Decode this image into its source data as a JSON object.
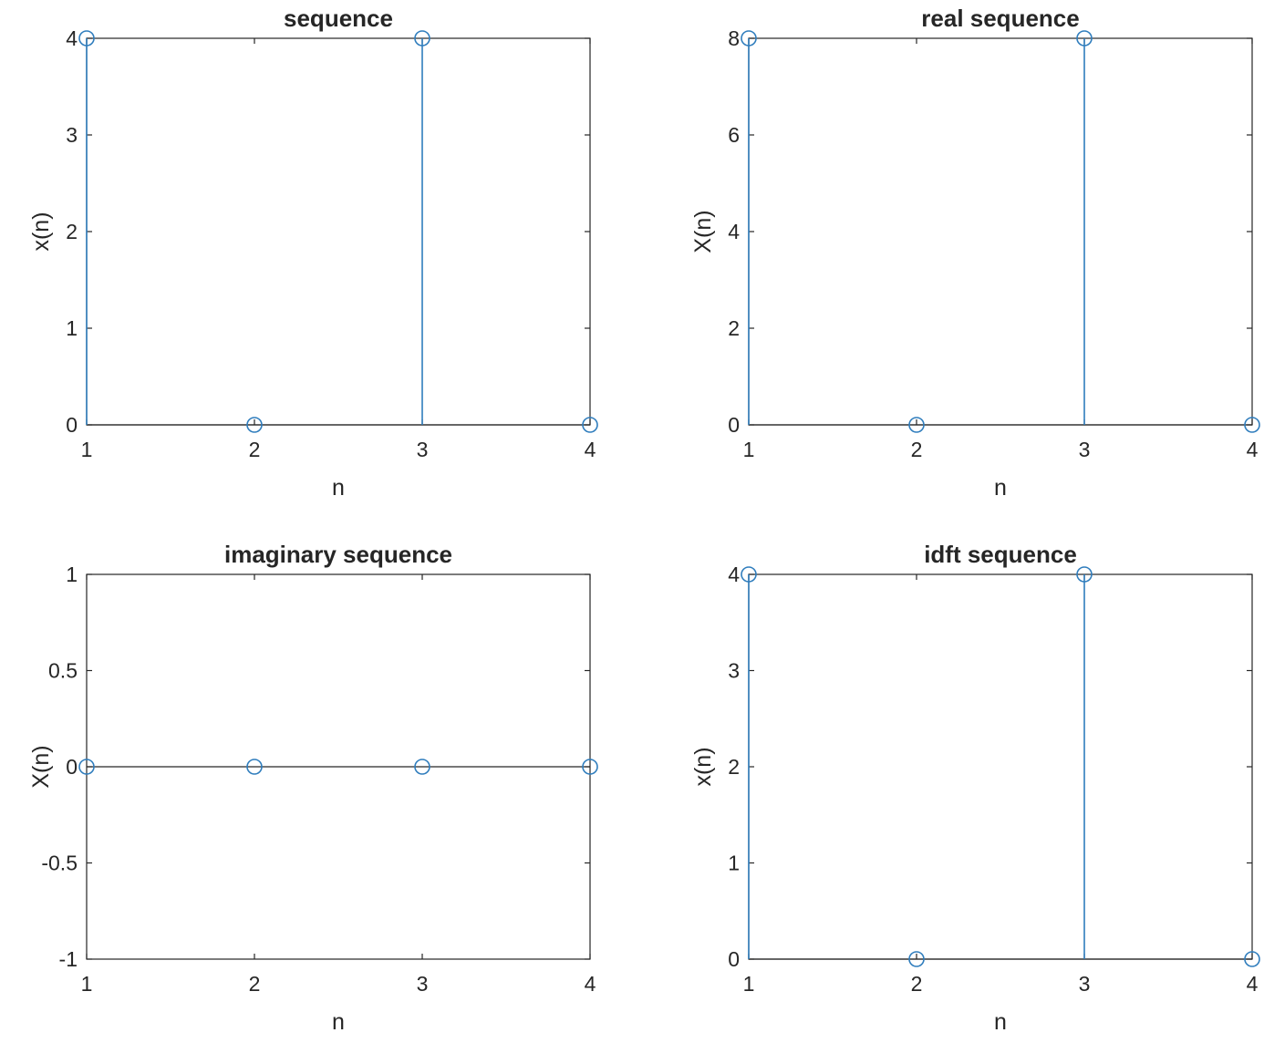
{
  "colors": {
    "stem": "#2f7dbd",
    "axis": "#262626",
    "background": "#ffffff"
  },
  "chart_data": [
    {
      "type": "stem",
      "title": "sequence",
      "xlabel": "n",
      "ylabel": "x(n)",
      "x": [
        1,
        2,
        3,
        4
      ],
      "values": [
        4,
        0,
        4,
        0
      ],
      "xlim": [
        1,
        4
      ],
      "ylim": [
        0,
        4
      ],
      "xticks": [
        "1",
        "2",
        "3",
        "4"
      ],
      "yticks": [
        "0",
        "1",
        "2",
        "3",
        "4"
      ],
      "grid": false
    },
    {
      "type": "stem",
      "title": "real sequence",
      "xlabel": "n",
      "ylabel": "X(n)",
      "x": [
        1,
        2,
        3,
        4
      ],
      "values": [
        8,
        0,
        8,
        0
      ],
      "xlim": [
        1,
        4
      ],
      "ylim": [
        0,
        8
      ],
      "xticks": [
        "1",
        "2",
        "3",
        "4"
      ],
      "yticks": [
        "0",
        "2",
        "4",
        "6",
        "8"
      ],
      "grid": false
    },
    {
      "type": "stem",
      "title": "imaginary sequence",
      "xlabel": "n",
      "ylabel": "X(n)",
      "x": [
        1,
        2,
        3,
        4
      ],
      "values": [
        0,
        0,
        0,
        0
      ],
      "xlim": [
        1,
        4
      ],
      "ylim": [
        -1,
        1
      ],
      "xticks": [
        "1",
        "2",
        "3",
        "4"
      ],
      "yticks": [
        "-1",
        "-0.5",
        "0",
        "0.5",
        "1"
      ],
      "grid": false
    },
    {
      "type": "stem",
      "title": "idft sequence",
      "xlabel": "n",
      "ylabel": "x(n)",
      "x": [
        1,
        2,
        3,
        4
      ],
      "values": [
        4,
        0,
        4,
        0
      ],
      "xlim": [
        1,
        4
      ],
      "ylim": [
        0,
        4
      ],
      "xticks": [
        "1",
        "2",
        "3",
        "4"
      ],
      "yticks": [
        "0",
        "1",
        "2",
        "3",
        "4"
      ],
      "grid": false
    }
  ]
}
